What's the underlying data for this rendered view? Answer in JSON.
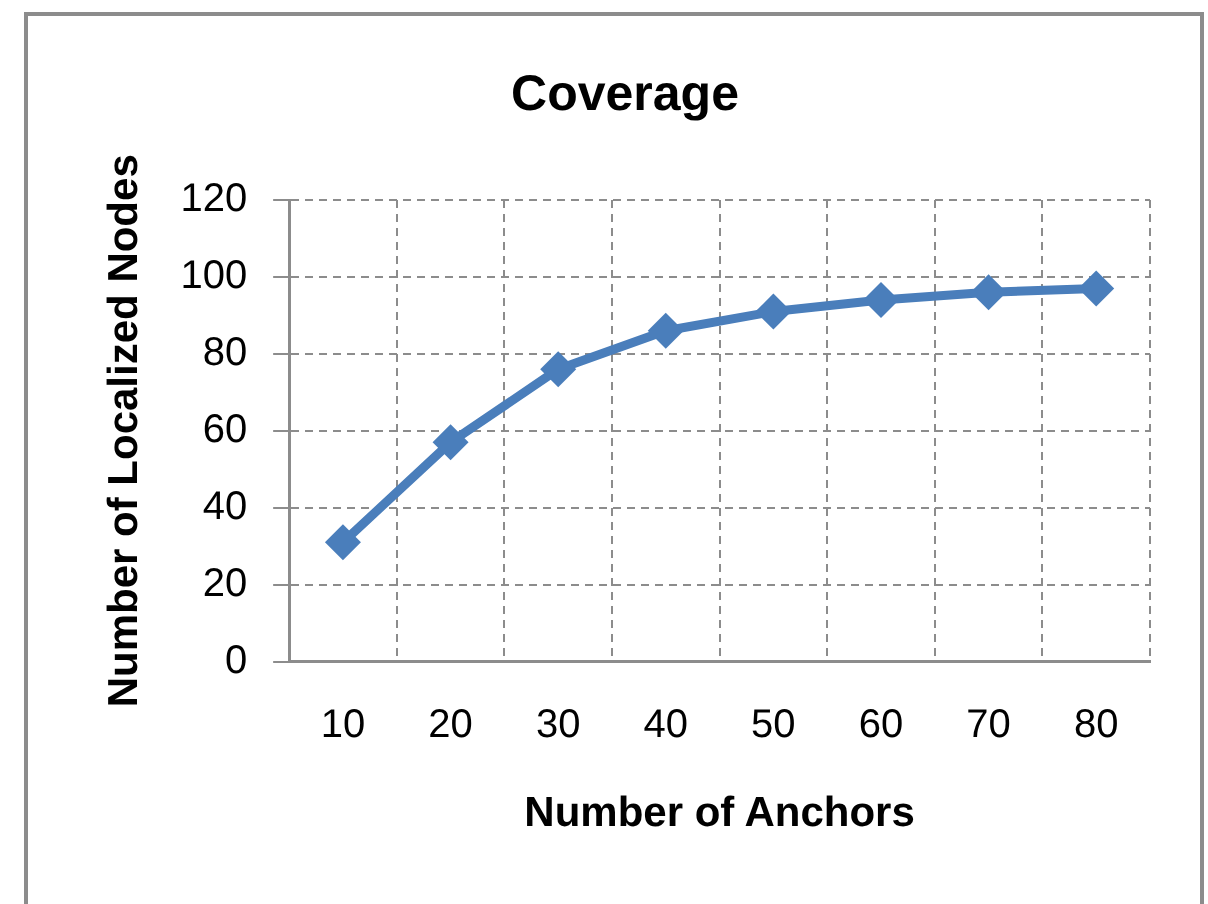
{
  "chart_data": {
    "type": "line",
    "title": "Coverage",
    "xlabel": "Number of Anchors",
    "ylabel": "Number of Localized Nodes",
    "categories": [
      "10",
      "20",
      "30",
      "40",
      "50",
      "60",
      "70",
      "80"
    ],
    "series": [
      {
        "color": "#4a7ebb",
        "values": [
          31,
          57,
          76,
          86,
          91,
          94,
          96,
          97
        ]
      }
    ],
    "ylim": [
      0,
      120
    ],
    "yticks": [
      0,
      20,
      40,
      60,
      80,
      100,
      120
    ],
    "grid": true,
    "marker": "diamond",
    "line_style": "solid"
  }
}
